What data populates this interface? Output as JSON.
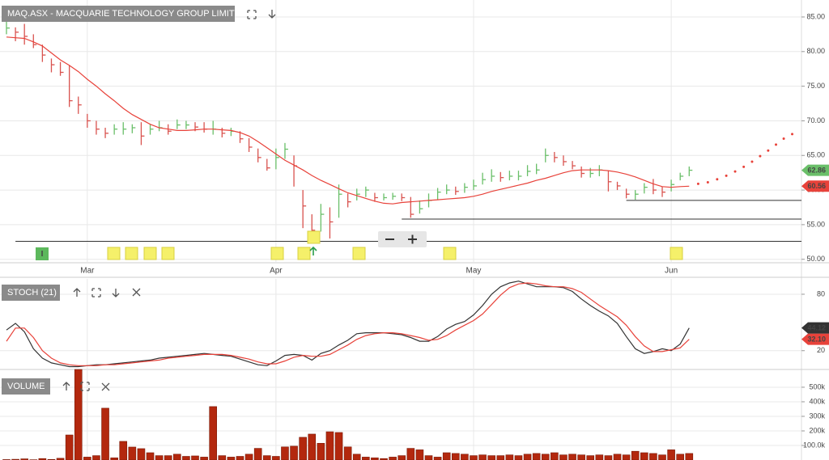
{
  "chart_data": [
    {
      "type": "ohlc",
      "title": "MAQ.ASX - MACQUARIE TECHNOLOGY GROUP LIMITED",
      "marker_label": "I",
      "xlim": [
        -0.72,
        88.5
      ],
      "xticks": [
        {
          "value": 9,
          "label": "Mar"
        },
        {
          "value": 30,
          "label": "Apr"
        },
        {
          "value": 52,
          "label": "May"
        },
        {
          "value": 74,
          "label": "Jun"
        }
      ],
      "ylim": [
        49.5,
        87.45
      ],
      "yticks": [
        {
          "value": 50,
          "label": "50.00"
        },
        {
          "value": 55,
          "label": "55.00"
        },
        {
          "value": 60,
          "label": "60.00"
        },
        {
          "value": 65,
          "label": "65.00"
        },
        {
          "value": 70,
          "label": "70.00"
        },
        {
          "value": 75,
          "label": "75.00"
        },
        {
          "value": 80,
          "label": "80.00"
        },
        {
          "value": 85,
          "label": "85.00"
        }
      ],
      "grid": true,
      "up_color": "#6abf69",
      "down_color": "#d9534f",
      "high": [
        84.5,
        83.5,
        84,
        82.5,
        81,
        79,
        78.5,
        78,
        73.5,
        71,
        70,
        69,
        69.5,
        69.8,
        69.5,
        69.8,
        69.5,
        70,
        69.5,
        70.2,
        70,
        69.8,
        69.8,
        70,
        69,
        69,
        68.5,
        67.5,
        66,
        64.5,
        66,
        66.8,
        65,
        60,
        56.5,
        58,
        57.5,
        60.8,
        59.5,
        60.2,
        60.5,
        59.6,
        59.5,
        59.6,
        59.5,
        59,
        58.5,
        59.5,
        60.3,
        60.8,
        60.5,
        61,
        61.5,
        62.5,
        63,
        62.6,
        62.8,
        62.8,
        63.6,
        63.8,
        66,
        65.5,
        65,
        64.2,
        63.4,
        63.2,
        63.6,
        62.8,
        61.2,
        60.2,
        60,
        61,
        61.6,
        60.5,
        61.5,
        62.5,
        63.4
      ],
      "low": [
        82.5,
        81.5,
        81,
        80.5,
        78.5,
        77,
        76.5,
        72,
        71,
        69,
        68,
        67.5,
        68,
        68,
        68.2,
        66.5,
        68,
        68.5,
        68,
        68.8,
        68.8,
        68.5,
        68.3,
        68,
        67.6,
        67.8,
        66.8,
        65.5,
        64,
        62.8,
        63,
        64.5,
        60.5,
        54.5,
        53.5,
        54,
        53,
        56,
        57.5,
        58.5,
        59,
        58.3,
        58.5,
        58.6,
        58.4,
        56,
        56.6,
        57.5,
        58.6,
        59.4,
        59.3,
        59.6,
        60,
        60.8,
        61.2,
        61.2,
        61.4,
        61.4,
        62,
        62.3,
        64,
        64,
        63.5,
        63,
        61.8,
        61.8,
        62,
        59.8,
        60,
        58.8,
        58.6,
        59.5,
        59.4,
        59,
        59.8,
        61.4,
        62
      ],
      "close": [
        83.4,
        82.8,
        82.2,
        81,
        79.5,
        78.1,
        77,
        72.9,
        72.3,
        70,
        68.8,
        68.2,
        68.8,
        68.8,
        69,
        67.8,
        68.8,
        69,
        68.5,
        69.4,
        69.4,
        69.1,
        68.8,
        68.8,
        68.2,
        68.5,
        67.4,
        66.2,
        64.7,
        63.2,
        64.7,
        65.9,
        63.5,
        57.7,
        54.2,
        56.5,
        55.4,
        59.4,
        58.3,
        59.4,
        60,
        58.9,
        58.9,
        59.1,
        58.9,
        56.5,
        57.3,
        58.5,
        59.7,
        60,
        59.8,
        60.4,
        60.6,
        61.5,
        62,
        61.8,
        62,
        62,
        62.7,
        62.9,
        65,
        64.7,
        64.1,
        63.5,
        62.4,
        62.4,
        62.9,
        61.2,
        60.6,
        59.4,
        59.4,
        60.4,
        60,
        59.7,
        60.8,
        62,
        62.86
      ],
      "overlays": [
        {
          "color": "#e8423a",
          "values": [
            82.1,
            82,
            81.9,
            81.4,
            80.8,
            79.8,
            78.8,
            78,
            77.1,
            76,
            75,
            73.9,
            72.9,
            71.8,
            70.9,
            70.2,
            69.5,
            69,
            68.8,
            68.6,
            68.6,
            68.7,
            68.8,
            68.8,
            68.7,
            68.6,
            68.3,
            67.8,
            67,
            66.1,
            65.2,
            64.3,
            63.6,
            62.9,
            62.1,
            61.4,
            60.8,
            60.2,
            59.6,
            59.2,
            58.8,
            58.4,
            58.1,
            58,
            58.2,
            58.3,
            58.4,
            58.5,
            58.6,
            58.7,
            58.8,
            58.9,
            59.1,
            59.4,
            59.8,
            60.1,
            60.4,
            60.7,
            61,
            61.4,
            61.7,
            62.1,
            62.5,
            62.8,
            62.9,
            62.9,
            62.9,
            62.8,
            62.6,
            62.3,
            61.9,
            61.4,
            60.9,
            60.5,
            60.4,
            60.5,
            60.56
          ]
        },
        {
          "color": "#e8423a",
          "style": "dotted",
          "x": [
            77,
            78,
            79,
            80,
            81,
            82,
            83,
            84,
            85,
            86,
            87,
            88
          ],
          "values": [
            60.9,
            61.1,
            61.5,
            62,
            62.6,
            63.3,
            64.1,
            65,
            65.9,
            66.9,
            67.9,
            68.3
          ]
        }
      ],
      "hlines": [
        {
          "value": 52.6,
          "start": 1
        },
        {
          "value": 55.8,
          "start": 44
        },
        {
          "value": 58.5,
          "start": 69
        }
      ]
    },
    {
      "type": "line",
      "title": "STOCH (21)",
      "ylim": [
        0,
        96.3
      ],
      "yticks": [
        20,
        80
      ],
      "grid": true,
      "series": [
        {
          "color": "#333333",
          "values": [
            42,
            49,
            40,
            22,
            12,
            7,
            5,
            3,
            3,
            4,
            5,
            5,
            6,
            7,
            8,
            9,
            10,
            12,
            13,
            14,
            15,
            16,
            17,
            16,
            15,
            14,
            11,
            8,
            5,
            4,
            9,
            15,
            16,
            15,
            10,
            17,
            20,
            26,
            31,
            38,
            39,
            39,
            39,
            38,
            37,
            34,
            30,
            30,
            35,
            43,
            48,
            51,
            58,
            68,
            80,
            88,
            92,
            94,
            91,
            88,
            88,
            88,
            87,
            83,
            75,
            68,
            62,
            57,
            49,
            35,
            22,
            17,
            19,
            22,
            20,
            27,
            44.12
          ]
        },
        {
          "color": "#e8423a",
          "values": [
            30,
            44,
            44,
            34,
            20,
            12,
            7,
            5,
            4,
            4,
            4,
            5,
            5,
            6,
            7,
            8,
            9,
            10,
            12,
            13,
            14,
            15,
            16,
            16,
            16,
            15,
            13,
            11,
            8,
            6,
            6,
            9,
            13,
            15,
            14,
            14,
            16,
            21,
            26,
            32,
            36,
            38,
            39,
            39,
            38,
            36,
            34,
            31,
            32,
            36,
            42,
            47,
            52,
            59,
            69,
            79,
            87,
            91,
            92,
            91,
            89,
            88,
            88,
            86,
            82,
            75,
            68,
            62,
            56,
            47,
            35,
            25,
            19,
            19,
            21,
            23,
            32.1
          ],
          "value_labels": [
            null,
            null,
            null,
            null,
            null,
            null,
            null,
            null,
            null,
            null,
            null,
            null,
            null,
            null,
            null,
            null,
            null,
            null,
            null,
            null,
            null,
            null,
            null,
            null,
            null,
            null,
            null,
            null,
            null,
            null,
            null,
            null,
            null,
            null,
            null,
            null,
            null,
            null,
            null,
            null,
            null,
            null,
            null,
            null,
            null,
            null,
            null,
            null,
            null,
            null,
            null,
            null,
            null,
            null,
            null,
            null,
            null,
            null,
            null,
            null,
            null,
            null,
            null,
            null,
            null,
            null,
            null,
            null,
            null,
            null,
            null,
            null,
            null,
            null,
            null,
            null,
            "32.10"
          ]
        }
      ]
    },
    {
      "type": "bar",
      "title": "VOLUME",
      "ylim": [
        0,
        622000
      ],
      "color": "#b3280e",
      "grid": true,
      "yticks": [
        {
          "value": 100000,
          "label": "100.0k"
        },
        {
          "value": 200000,
          "label": "200k"
        },
        {
          "value": 300000,
          "label": "300k"
        },
        {
          "value": 400000,
          "label": "400k"
        },
        {
          "value": 500000,
          "label": "500k"
        }
      ],
      "values": [
        3000,
        5000,
        8000,
        2000,
        10000,
        4000,
        12000,
        172000,
        622000,
        20000,
        30000,
        356000,
        15000,
        128000,
        89000,
        78000,
        50000,
        30000,
        30000,
        40000,
        25000,
        28000,
        20000,
        367000,
        30000,
        20000,
        25000,
        40000,
        80000,
        30000,
        25000,
        90000,
        95000,
        156000,
        178000,
        115000,
        194000,
        189000,
        90000,
        40000,
        20000,
        15000,
        10000,
        20000,
        30000,
        80000,
        70000,
        30000,
        20000,
        50000,
        45000,
        40000,
        30000,
        35000,
        30000,
        30000,
        35000,
        30000,
        40000,
        45000,
        40000,
        50000,
        35000,
        40000,
        35000,
        30000,
        35000,
        30000,
        40000,
        35000,
        60000,
        50000,
        45000,
        35000,
        70000,
        40000,
        45000
      ]
    }
  ]
}
